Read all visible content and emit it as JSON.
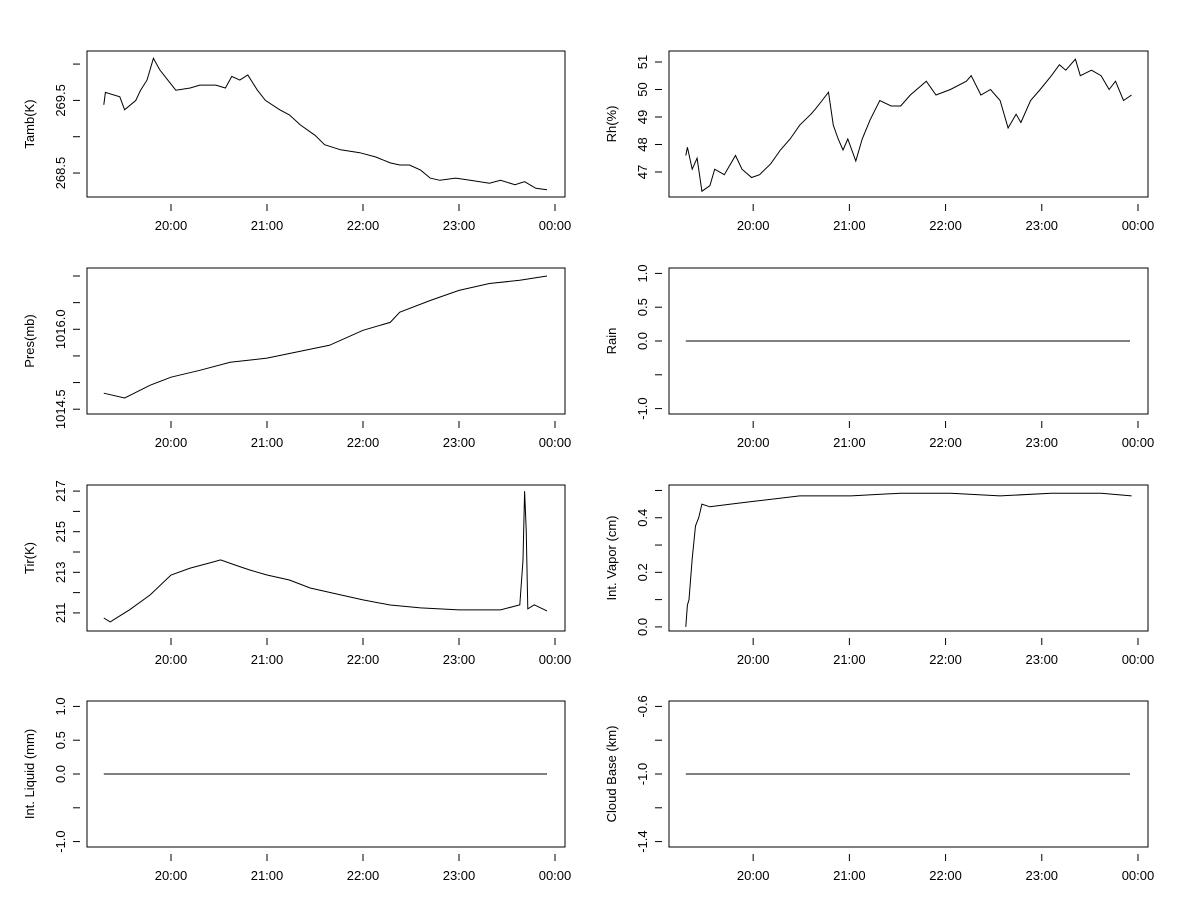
{
  "chart_data": [
    {
      "type": "line",
      "ylabel": "Tamb(K)",
      "xlim": [
        "19:07",
        "00:06"
      ],
      "ylim": [
        268.17,
        270.18
      ],
      "xticks": [
        "20:00",
        "21:00",
        "22:00",
        "23:00",
        "00:00"
      ],
      "yticks": [
        268.5,
        269.0,
        269.5,
        270.0
      ],
      "ytick_labels": [
        "268.5",
        "",
        "269.5",
        ""
      ],
      "x": [
        "19:18",
        "19:19",
        "19:28",
        "19:31",
        "19:38",
        "19:41",
        "19:45",
        "19:49",
        "19:53",
        "19:58",
        "20:03",
        "20:12",
        "20:18",
        "20:28",
        "20:34",
        "20:38",
        "20:43",
        "20:48",
        "20:54",
        "20:59",
        "21:08",
        "21:14",
        "21:21",
        "21:30",
        "21:36",
        "21:46",
        "21:58",
        "22:08",
        "22:17",
        "22:23",
        "22:29",
        "22:36",
        "22:42",
        "22:48",
        "22:58",
        "23:07",
        "23:19",
        "23:26",
        "23:35",
        "23:41",
        "23:48",
        "23:55"
      ],
      "y": [
        269.44,
        269.61,
        269.55,
        269.37,
        269.5,
        269.64,
        269.78,
        270.08,
        269.92,
        269.78,
        269.64,
        269.67,
        269.71,
        269.71,
        269.67,
        269.83,
        269.78,
        269.85,
        269.64,
        269.5,
        269.37,
        269.3,
        269.16,
        269.02,
        268.89,
        268.82,
        268.78,
        268.72,
        268.64,
        268.61,
        268.61,
        268.54,
        268.43,
        268.4,
        268.43,
        268.4,
        268.36,
        268.4,
        268.34,
        268.38,
        268.29,
        268.27
      ]
    },
    {
      "type": "line",
      "ylabel": "Rh(%)",
      "xlim": [
        "19:07",
        "00:06"
      ],
      "ylim": [
        46.09,
        51.4
      ],
      "xticks": [
        "20:00",
        "21:00",
        "22:00",
        "23:00",
        "00:00"
      ],
      "yticks": [
        47,
        48,
        49,
        50,
        51
      ],
      "ytick_labels": [
        "47",
        "48",
        "49",
        "50",
        "51"
      ],
      "x": [
        "19:18",
        "19:19",
        "19:22",
        "19:25",
        "19:28",
        "19:33",
        "19:36",
        "19:42",
        "19:49",
        "19:53",
        "19:59",
        "20:04",
        "20:11",
        "20:17",
        "20:23",
        "20:29",
        "20:36",
        "20:39",
        "20:43",
        "20:47",
        "20:50",
        "20:53",
        "20:56",
        "20:59",
        "21:04",
        "21:08",
        "21:13",
        "21:19",
        "21:26",
        "21:32",
        "21:38",
        "21:48",
        "21:54",
        "22:03",
        "22:13",
        "22:16",
        "22:22",
        "22:28",
        "22:34",
        "22:39",
        "22:44",
        "22:47",
        "22:53",
        "22:59",
        "23:06",
        "23:11",
        "23:15",
        "23:21",
        "23:24",
        "23:31",
        "23:37",
        "23:42",
        "23:46",
        "23:51",
        "23:56"
      ],
      "y": [
        47.6,
        47.9,
        47.1,
        47.5,
        46.3,
        46.5,
        47.1,
        46.9,
        47.6,
        47.1,
        46.8,
        46.9,
        47.3,
        47.8,
        48.2,
        48.7,
        49.1,
        49.3,
        49.6,
        49.9,
        48.7,
        48.2,
        47.8,
        48.2,
        47.4,
        48.2,
        48.9,
        49.6,
        49.4,
        49.4,
        49.8,
        50.3,
        49.8,
        50.0,
        50.3,
        50.5,
        49.8,
        50.0,
        49.6,
        48.6,
        49.1,
        48.8,
        49.6,
        50.0,
        50.5,
        50.9,
        50.7,
        51.1,
        50.5,
        50.7,
        50.5,
        50.0,
        50.3,
        49.6,
        49.8
      ]
    },
    {
      "type": "line",
      "ylabel": "Pres(mb)",
      "xlim": [
        "19:07",
        "00:06"
      ],
      "ylim": [
        1014.41,
        1017.15
      ],
      "xticks": [
        "20:00",
        "21:00",
        "22:00",
        "23:00",
        "00:00"
      ],
      "yticks": [
        1014.5,
        1015.0,
        1015.5,
        1016.0,
        1016.5,
        1017.0
      ],
      "ytick_labels": [
        "1014.5",
        "",
        "",
        "1016.0",
        "",
        ""
      ],
      "x": [
        "19:18",
        "19:31",
        "19:47",
        "20:00",
        "20:18",
        "20:37",
        "21:00",
        "21:39",
        "22:00",
        "22:17",
        "22:23",
        "22:42",
        "23:00",
        "23:19",
        "23:38",
        "23:55"
      ],
      "y": [
        1014.8,
        1014.71,
        1014.95,
        1015.1,
        1015.23,
        1015.38,
        1015.46,
        1015.7,
        1015.98,
        1016.13,
        1016.32,
        1016.54,
        1016.73,
        1016.86,
        1016.92,
        1017.0
      ]
    },
    {
      "type": "line",
      "ylabel": "Rain",
      "xlim": [
        "19:07",
        "00:06"
      ],
      "ylim": [
        -1.08,
        1.08
      ],
      "xticks": [
        "20:00",
        "21:00",
        "22:00",
        "23:00",
        "00:00"
      ],
      "yticks": [
        -1.0,
        -0.5,
        0.0,
        0.5,
        1.0
      ],
      "ytick_labels": [
        "-1.0",
        "",
        "0.0",
        "0.5",
        "1.0"
      ],
      "x": [
        "19:18",
        "23:55"
      ],
      "y": [
        0,
        0
      ]
    },
    {
      "type": "line",
      "ylabel": "Tir(K)",
      "xlim": [
        "19:07",
        "00:06"
      ],
      "ylim": [
        210.11,
        217.3
      ],
      "xticks": [
        "20:00",
        "21:00",
        "22:00",
        "23:00",
        "00:00"
      ],
      "yticks": [
        211,
        212,
        213,
        214,
        215,
        216,
        217
      ],
      "ytick_labels": [
        "211",
        "",
        "213",
        "",
        "215",
        "",
        "217"
      ],
      "x": [
        "19:18",
        "19:22",
        "19:34",
        "19:47",
        "20:00",
        "20:12",
        "20:24",
        "20:31",
        "20:40",
        "20:49",
        "21:00",
        "21:14",
        "21:27",
        "21:46",
        "22:00",
        "22:17",
        "22:36",
        "23:00",
        "23:26",
        "23:38",
        "23:40",
        "23:41",
        "23:42",
        "23:43",
        "23:47",
        "23:55"
      ],
      "y": [
        210.75,
        210.56,
        211.15,
        211.89,
        212.87,
        213.21,
        213.46,
        213.61,
        213.36,
        213.12,
        212.87,
        212.62,
        212.23,
        211.89,
        211.64,
        211.39,
        211.25,
        211.15,
        211.15,
        211.4,
        213.6,
        217.0,
        215.1,
        211.2,
        211.4,
        211.1
      ]
    },
    {
      "type": "line",
      "ylabel": "Int. Vapor (cm)",
      "xlim": [
        "19:07",
        "00:06"
      ],
      "ylim": [
        -0.015,
        0.52
      ],
      "xticks": [
        "20:00",
        "21:00",
        "22:00",
        "23:00",
        "00:00"
      ],
      "yticks": [
        0.0,
        0.1,
        0.2,
        0.3,
        0.4,
        0.5
      ],
      "ytick_labels": [
        "0.0",
        "",
        "0.2",
        "",
        "0.4",
        ""
      ],
      "x": [
        "19:18",
        "19:19",
        "19:20",
        "19:22",
        "19:24",
        "19:26",
        "19:28",
        "19:33",
        "19:46",
        "20:00",
        "20:29",
        "21:01",
        "21:32",
        "22:03",
        "22:34",
        "23:06",
        "23:37",
        "23:56"
      ],
      "y": [
        0.0,
        0.08,
        0.1,
        0.25,
        0.37,
        0.4,
        0.45,
        0.44,
        0.45,
        0.46,
        0.48,
        0.48,
        0.49,
        0.49,
        0.48,
        0.49,
        0.49,
        0.48
      ]
    },
    {
      "type": "line",
      "ylabel": "Int. Liquid (mm)",
      "xlim": [
        "19:07",
        "00:06"
      ],
      "ylim": [
        -1.08,
        1.08
      ],
      "xticks": [
        "20:00",
        "21:00",
        "22:00",
        "23:00",
        "00:00"
      ],
      "yticks": [
        -1.0,
        -0.5,
        0.0,
        0.5,
        1.0
      ],
      "ytick_labels": [
        "-1.0",
        "",
        "0.0",
        "0.5",
        "1.0"
      ],
      "x": [
        "19:18",
        "23:55"
      ],
      "y": [
        0,
        0
      ]
    },
    {
      "type": "line",
      "ylabel": "Cloud Base (km)",
      "xlim": [
        "19:07",
        "00:06"
      ],
      "ylim": [
        -1.432,
        -0.568
      ],
      "xticks": [
        "20:00",
        "21:00",
        "22:00",
        "23:00",
        "00:00"
      ],
      "yticks": [
        -1.4,
        -1.2,
        -1.0,
        -0.8,
        -0.6
      ],
      "ytick_labels": [
        "-1.4",
        "",
        "-1.0",
        "",
        "-0.6"
      ],
      "x": [
        "19:18",
        "23:55"
      ],
      "y": [
        -1,
        -1
      ]
    }
  ]
}
